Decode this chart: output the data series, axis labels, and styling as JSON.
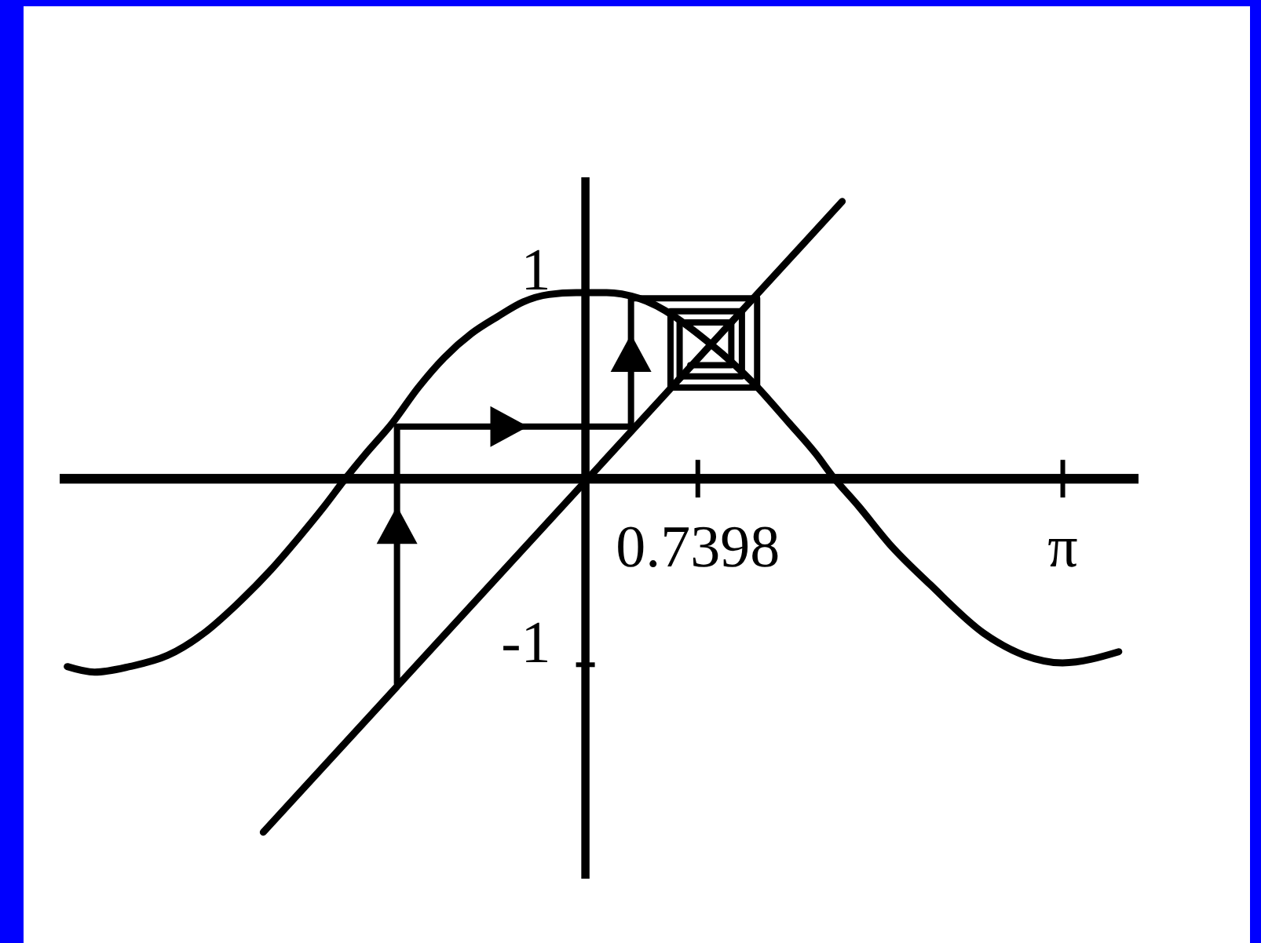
{
  "chart_data": {
    "type": "line",
    "xlim": [
      -3.46,
      3.64
    ],
    "ylim": [
      -2.15,
      1.62
    ],
    "xticks": [
      0.7398,
      {
        "value": 3.1416,
        "label": "π"
      }
    ],
    "yticks": [
      -1,
      1
    ],
    "series": [
      {
        "color": "#000000",
        "x": [
          -3.41,
          -3.23,
          -3.0,
          -2.75,
          -2.51,
          -2.3,
          -2.07,
          -1.89,
          -1.72,
          -1.58,
          -1.45,
          -1.27,
          -1.1,
          -0.93,
          -0.75,
          -0.58,
          -0.41,
          -0.24,
          -0.06,
          0.14,
          0.35,
          0.83,
          1.11,
          1.34,
          1.52,
          1.62,
          1.8,
          2.0,
          2.27,
          2.62,
          2.89,
          3.14,
          3.51
        ],
        "values": [
          -1.01,
          -1.04,
          -1.01,
          -0.95,
          -0.83,
          -0.68,
          -0.49,
          -0.32,
          -0.15,
          0.0,
          0.13,
          0.3,
          0.49,
          0.65,
          0.78,
          0.87,
          0.95,
          0.99,
          1.0,
          1.0,
          0.97,
          0.72,
          0.51,
          0.3,
          0.13,
          0.02,
          -0.15,
          -0.35,
          -0.57,
          -0.83,
          -0.95,
          -0.99,
          -0.93
        ]
      },
      {
        "color": "#000000",
        "x": [
          -2.12,
          1.69
        ],
        "values": [
          -1.9,
          1.49
        ]
      },
      {
        "color": "#000000",
        "x": [
          -1.24,
          -1.24,
          0.3,
          0.3,
          1.13,
          1.13,
          0.56,
          0.56,
          1.03,
          1.03,
          0.62,
          0.62,
          0.96,
          0.96,
          0.69
        ],
        "values": [
          -1.1,
          0.28,
          0.28,
          0.97,
          0.97,
          0.49,
          0.49,
          0.9,
          0.9,
          0.55,
          0.55,
          0.84,
          0.84,
          0.61,
          0.61
        ]
      }
    ]
  }
}
